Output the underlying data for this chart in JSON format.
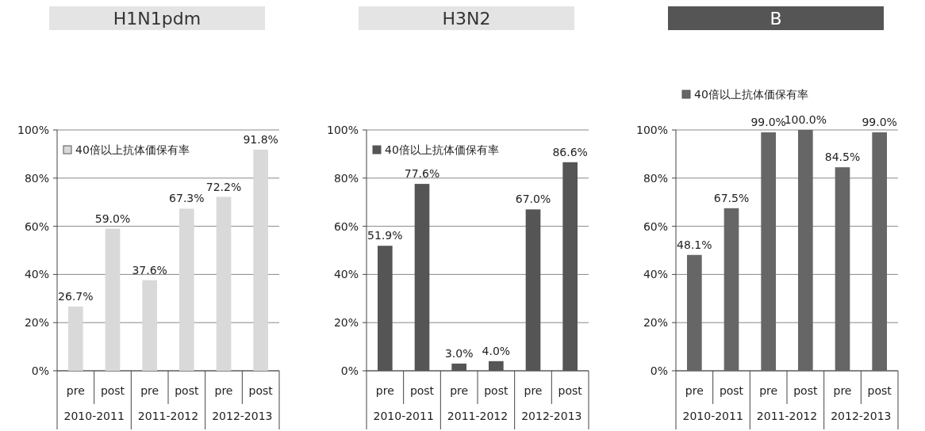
{
  "chart_data": [
    {
      "type": "bar",
      "title": "H1N1pdm",
      "categories": [
        "pre",
        "post",
        "pre",
        "post",
        "pre",
        "post"
      ],
      "series": [
        {
          "name": "40倍以上抗体価保有率",
          "color": "#d9d9d9",
          "values": [
            26.7,
            59.0,
            37.6,
            67.3,
            72.2,
            91.8
          ],
          "value_labels": [
            "26.7%",
            "59.0%",
            "37.6%",
            "67.3%",
            "72.2%",
            "91.8%"
          ]
        }
      ],
      "annotations": [
        "2010-2011",
        "2011-2012",
        "2012-2013"
      ],
      "ylim": [
        0,
        100
      ],
      "yticks": [
        {
          "value": 0,
          "label": "0%"
        },
        {
          "value": 20,
          "label": "20%"
        },
        {
          "value": 40,
          "label": "40%"
        },
        {
          "value": 60,
          "label": "60%"
        },
        {
          "value": 80,
          "label": "80%"
        },
        {
          "value": 100,
          "label": "100%"
        }
      ],
      "grid": "y",
      "legend": "top left"
    },
    {
      "type": "bar",
      "title": "H3N2",
      "categories": [
        "pre",
        "post",
        "pre",
        "post",
        "pre",
        "post"
      ],
      "series": [
        {
          "name": "40倍以上抗体価保有率",
          "color": "#555555",
          "values": [
            51.9,
            77.6,
            3.0,
            4.0,
            67.0,
            86.6
          ],
          "value_labels": [
            "51.9%",
            "77.6%",
            "3.0%",
            "4.0%",
            "67.0%",
            "86.6%"
          ]
        }
      ],
      "annotations": [
        "2010-2011",
        "2011-2012",
        "2012-2013"
      ],
      "ylim": [
        0,
        100
      ],
      "yticks": [
        {
          "value": 0,
          "label": "0%"
        },
        {
          "value": 20,
          "label": "20%"
        },
        {
          "value": 40,
          "label": "40%"
        },
        {
          "value": 60,
          "label": "60%"
        },
        {
          "value": 80,
          "label": "80%"
        },
        {
          "value": 100,
          "label": "100%"
        }
      ],
      "grid": "y",
      "legend": "top left"
    },
    {
      "type": "bar",
      "title": "B",
      "categories": [
        "pre",
        "post",
        "pre",
        "post",
        "pre",
        "post"
      ],
      "series": [
        {
          "name": "40倍以上抗体価保有率",
          "color": "#666666",
          "values": [
            48.1,
            67.5,
            99.0,
            100.0,
            84.5,
            99.0
          ],
          "value_labels": [
            "48.1%",
            "67.5%",
            "99.0%",
            "100.0%",
            "84.5%",
            "99.0%"
          ]
        }
      ],
      "annotations": [
        "2010-2011",
        "2011-2012",
        "2012-2013"
      ],
      "ylim": [
        0,
        100
      ],
      "yticks": [
        {
          "value": 0,
          "label": "0%"
        },
        {
          "value": 20,
          "label": "20%"
        },
        {
          "value": 40,
          "label": "40%"
        },
        {
          "value": 60,
          "label": "60%"
        },
        {
          "value": 80,
          "label": "80%"
        },
        {
          "value": 100,
          "label": "100%"
        }
      ],
      "grid": "y",
      "legend": "top"
    }
  ]
}
